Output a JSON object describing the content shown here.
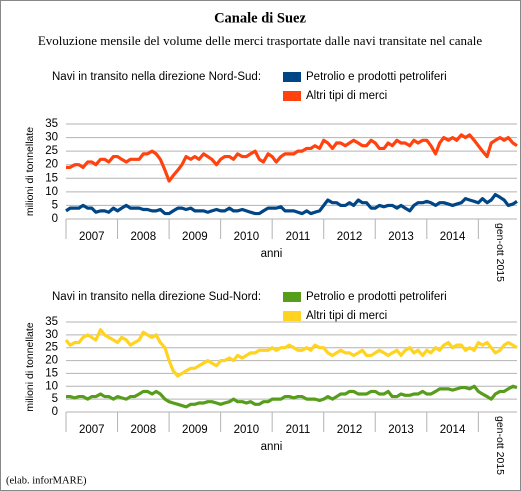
{
  "title": "Canale di Suez",
  "subtitle": "Evoluzione mensile del volume delle merci trasportate dalle navi transitate nel canale",
  "source": "(elab. inforMARE)",
  "chart_data": [
    {
      "type": "line",
      "legend_title": "Navi in transito nella direzione Nord-Sud:",
      "y_label": "milioni di tonnellate",
      "x_label": "anni",
      "xlim": [
        2007,
        2015.75
      ],
      "ylim": [
        0,
        35
      ],
      "yticks": [
        0,
        5,
        10,
        15,
        20,
        25,
        30,
        35
      ],
      "grid": true,
      "xticks": [
        {
          "value": 2007.5,
          "label": "2007"
        },
        {
          "value": 2008.5,
          "label": "2008"
        },
        {
          "value": 2009.5,
          "label": "2009"
        },
        {
          "value": 2010.5,
          "label": "2010"
        },
        {
          "value": 2011.5,
          "label": "2011"
        },
        {
          "value": 2012.5,
          "label": "2012"
        },
        {
          "value": 2013.5,
          "label": "2013"
        },
        {
          "value": 2014.5,
          "label": "2014"
        },
        {
          "value": 2015.42,
          "label": "gen-ott 2015"
        }
      ],
      "x": [
        2007.0,
        2007.08,
        2007.17,
        2007.25,
        2007.33,
        2007.42,
        2007.5,
        2007.58,
        2007.67,
        2007.75,
        2007.83,
        2007.92,
        2008.0,
        2008.08,
        2008.17,
        2008.25,
        2008.33,
        2008.42,
        2008.5,
        2008.58,
        2008.67,
        2008.75,
        2008.83,
        2008.92,
        2009.0,
        2009.08,
        2009.17,
        2009.25,
        2009.33,
        2009.42,
        2009.5,
        2009.58,
        2009.67,
        2009.75,
        2009.83,
        2009.92,
        2010.0,
        2010.08,
        2010.17,
        2010.25,
        2010.33,
        2010.42,
        2010.5,
        2010.58,
        2010.67,
        2010.75,
        2010.83,
        2010.92,
        2011.0,
        2011.08,
        2011.17,
        2011.25,
        2011.33,
        2011.42,
        2011.5,
        2011.58,
        2011.67,
        2011.75,
        2011.83,
        2011.92,
        2012.0,
        2012.08,
        2012.17,
        2012.25,
        2012.33,
        2012.42,
        2012.5,
        2012.58,
        2012.67,
        2012.75,
        2012.83,
        2012.92,
        2013.0,
        2013.08,
        2013.17,
        2013.25,
        2013.33,
        2013.42,
        2013.5,
        2013.58,
        2013.67,
        2013.75,
        2013.83,
        2013.92,
        2014.0,
        2014.08,
        2014.17,
        2014.25,
        2014.33,
        2014.42,
        2014.5,
        2014.58,
        2014.67,
        2014.75,
        2014.83,
        2014.92,
        2015.0,
        2015.08,
        2015.17,
        2015.25,
        2015.33,
        2015.42,
        2015.5,
        2015.58,
        2015.67,
        2015.75
      ],
      "series": [
        {
          "name": "Petrolio e prodotti petroliferi",
          "color": "#004586",
          "values": [
            3,
            4,
            4,
            4,
            5,
            4,
            4,
            2.5,
            3,
            3,
            2.5,
            4,
            3,
            4,
            5,
            4,
            4,
            4,
            3.5,
            3.5,
            3,
            3,
            3.5,
            2,
            2,
            3,
            4,
            4,
            3.5,
            4,
            3,
            3,
            3,
            2.5,
            3,
            3.5,
            3,
            3,
            4,
            3,
            3,
            3.5,
            3,
            2.5,
            2,
            2,
            3,
            4,
            4,
            4,
            4.5,
            3,
            3,
            3,
            2.5,
            2,
            3,
            2,
            2.5,
            3,
            5,
            7,
            6,
            6,
            5,
            5,
            6,
            5,
            7,
            6,
            6,
            4,
            4,
            5,
            4.5,
            5,
            5,
            4,
            5,
            4,
            3,
            5,
            6,
            6,
            6.5,
            6,
            5,
            6,
            6,
            5.5,
            5,
            5.5,
            6,
            7.5,
            7,
            6.5,
            6,
            7.5,
            6,
            7,
            9,
            8,
            7,
            5,
            5.5,
            6.5
          ]
        },
        {
          "name": "Altri tipi di merci",
          "color": "#ff420e",
          "values": [
            19,
            19,
            20,
            20,
            19,
            21,
            21,
            20,
            22,
            22,
            21,
            23,
            23,
            22,
            21,
            22,
            22,
            22,
            24,
            24,
            25,
            24,
            22,
            18,
            14,
            16,
            18,
            20,
            23,
            22,
            23,
            22,
            24,
            23,
            22,
            20,
            22,
            23,
            23,
            22,
            24,
            23,
            23,
            24,
            25,
            22,
            21,
            24,
            23,
            21,
            23,
            24,
            24,
            24,
            25,
            25,
            26,
            26,
            27,
            26,
            29,
            28,
            26,
            28,
            28,
            27,
            28,
            29,
            28,
            27,
            27,
            29,
            28,
            26,
            26,
            28,
            27,
            29,
            28,
            28,
            27,
            29,
            28,
            29,
            29,
            27,
            24,
            28,
            30,
            29,
            30,
            29,
            31,
            30,
            31,
            29,
            27,
            25,
            23,
            28,
            29,
            30,
            29,
            30,
            28,
            27
          ]
        }
      ]
    },
    {
      "type": "line",
      "legend_title": "Navi in transito nella direzione Sud-Nord:",
      "y_label": "milioni di tonnellate",
      "x_label": "anni",
      "xlim": [
        2007,
        2015.75
      ],
      "ylim": [
        0,
        35
      ],
      "yticks": [
        0,
        5,
        10,
        15,
        20,
        25,
        30,
        35
      ],
      "grid": true,
      "xticks": [
        {
          "value": 2007.5,
          "label": "2007"
        },
        {
          "value": 2008.5,
          "label": "2008"
        },
        {
          "value": 2009.5,
          "label": "2009"
        },
        {
          "value": 2010.5,
          "label": "2010"
        },
        {
          "value": 2011.5,
          "label": "2011"
        },
        {
          "value": 2012.5,
          "label": "2012"
        },
        {
          "value": 2013.5,
          "label": "2013"
        },
        {
          "value": 2014.5,
          "label": "2014"
        },
        {
          "value": 2015.42,
          "label": "gen-ott 2015"
        }
      ],
      "x": [
        2007.0,
        2007.08,
        2007.17,
        2007.25,
        2007.33,
        2007.42,
        2007.5,
        2007.58,
        2007.67,
        2007.75,
        2007.83,
        2007.92,
        2008.0,
        2008.08,
        2008.17,
        2008.25,
        2008.33,
        2008.42,
        2008.5,
        2008.58,
        2008.67,
        2008.75,
        2008.83,
        2008.92,
        2009.0,
        2009.08,
        2009.17,
        2009.25,
        2009.33,
        2009.42,
        2009.5,
        2009.58,
        2009.67,
        2009.75,
        2009.83,
        2009.92,
        2010.0,
        2010.08,
        2010.17,
        2010.25,
        2010.33,
        2010.42,
        2010.5,
        2010.58,
        2010.67,
        2010.75,
        2010.83,
        2010.92,
        2011.0,
        2011.08,
        2011.17,
        2011.25,
        2011.33,
        2011.42,
        2011.5,
        2011.58,
        2011.67,
        2011.75,
        2011.83,
        2011.92,
        2012.0,
        2012.08,
        2012.17,
        2012.25,
        2012.33,
        2012.42,
        2012.5,
        2012.58,
        2012.67,
        2012.75,
        2012.83,
        2012.92,
        2013.0,
        2013.08,
        2013.17,
        2013.25,
        2013.33,
        2013.42,
        2013.5,
        2013.58,
        2013.67,
        2013.75,
        2013.83,
        2013.92,
        2014.0,
        2014.08,
        2014.17,
        2014.25,
        2014.33,
        2014.42,
        2014.5,
        2014.58,
        2014.67,
        2014.75,
        2014.83,
        2014.92,
        2015.0,
        2015.08,
        2015.17,
        2015.25,
        2015.33,
        2015.42,
        2015.5,
        2015.58,
        2015.67,
        2015.75
      ],
      "series": [
        {
          "name": "Petrolio e prodotti petroliferi",
          "color": "#579d1c",
          "values": [
            6,
            6,
            5.5,
            6,
            6,
            5,
            6,
            6,
            7,
            6,
            6,
            5,
            6,
            5.5,
            5,
            6,
            6,
            7,
            8,
            8,
            7,
            8,
            7,
            5,
            4,
            3.5,
            3,
            2.5,
            2,
            3,
            3,
            3.5,
            3.5,
            4,
            4,
            3.5,
            3,
            3.5,
            4,
            5,
            4,
            4,
            3.5,
            4,
            3,
            3,
            4,
            4,
            5,
            5,
            5,
            6,
            6,
            5.5,
            6,
            6,
            5,
            5,
            5,
            4.5,
            5,
            6,
            5,
            6,
            7,
            7,
            8,
            8,
            7,
            7,
            7,
            8,
            8,
            7,
            7,
            8,
            6,
            6,
            7,
            6.5,
            6.5,
            7,
            7,
            8,
            7,
            7,
            8,
            9,
            9,
            9,
            8.5,
            9,
            9.5,
            9.5,
            9,
            10,
            8,
            7,
            6,
            5,
            7,
            8,
            8,
            9,
            10,
            9.5
          ]
        },
        {
          "name": "Altri tipi di merci",
          "color": "#ffd320",
          "values": [
            28,
            26,
            27,
            27,
            29,
            30,
            29,
            28,
            32,
            30,
            29,
            28,
            27,
            29,
            28,
            26,
            27,
            28,
            31,
            30,
            29,
            30,
            27,
            25,
            20,
            16,
            14,
            15,
            16,
            17,
            17,
            18,
            19,
            20,
            19,
            18,
            20,
            20,
            21,
            20,
            22,
            21,
            22,
            23,
            23,
            24,
            24,
            24,
            25,
            24,
            25,
            25,
            26,
            25,
            24,
            24,
            25,
            24,
            26,
            25,
            25,
            23,
            22,
            23,
            24,
            23,
            23,
            22,
            23,
            24,
            22,
            22,
            23,
            24,
            23,
            22,
            23,
            24,
            22,
            24,
            25,
            23,
            24,
            22,
            24,
            23,
            25,
            24,
            26,
            27,
            25,
            26,
            26,
            24,
            25,
            24,
            27,
            26,
            27,
            25,
            23,
            24,
            26,
            27,
            26,
            25
          ]
        }
      ]
    }
  ]
}
